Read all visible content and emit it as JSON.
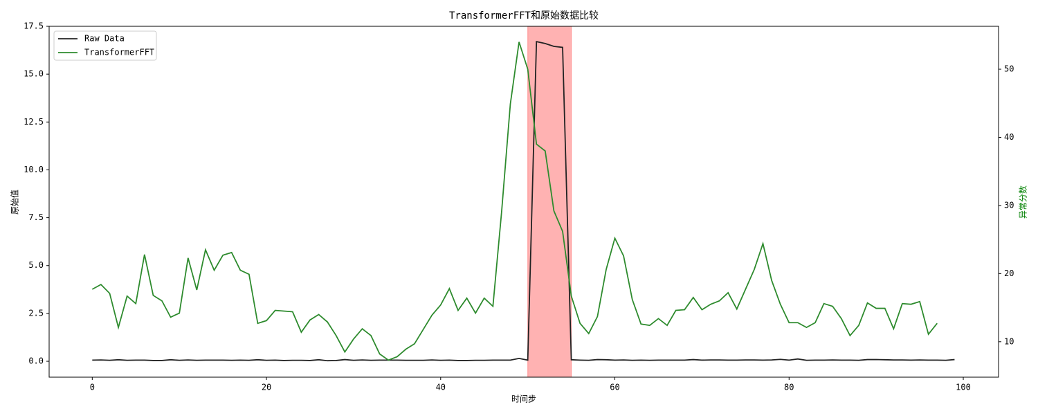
{
  "chart_data": {
    "type": "line",
    "title": "TransformerFFT和原始数据比较",
    "xlabel": "时间步",
    "ylabel": "原始值",
    "y2label": "异常分数",
    "y2label_color": "#008000",
    "xlim": [
      -4.95,
      104.05
    ],
    "xticks": [
      0,
      20,
      40,
      60,
      80,
      100
    ],
    "ylim": [
      -0.83,
      17.5
    ],
    "yticks": [
      {
        "value": 0,
        "label": "0.0"
      },
      2.5,
      {
        "value": 5,
        "label": "5.0"
      },
      7.5,
      {
        "value": 10,
        "label": "10.0"
      },
      12.5,
      {
        "value": 15,
        "label": "15.0"
      },
      17.5
    ],
    "y2lim": [
      4.8,
      56.3
    ],
    "y2ticks": [
      10,
      20,
      30,
      40,
      50
    ],
    "legend": "upper left",
    "grid": false,
    "highlight": {
      "xmin": 50,
      "xmax": 55,
      "color": "#ff0000",
      "alpha": 0.3
    },
    "series": [
      {
        "name": "Raw Data",
        "color": "#222222",
        "x": [
          0,
          1,
          2,
          3,
          4,
          5,
          6,
          7,
          8,
          9,
          10,
          11,
          12,
          13,
          14,
          15,
          16,
          17,
          18,
          19,
          20,
          21,
          22,
          23,
          24,
          25,
          26,
          27,
          28,
          29,
          30,
          31,
          32,
          33,
          34,
          35,
          36,
          37,
          38,
          39,
          40,
          41,
          42,
          43,
          44,
          45,
          46,
          47,
          48,
          49,
          50,
          51,
          52,
          53,
          54,
          55,
          56,
          57,
          58,
          59,
          60,
          61,
          62,
          63,
          64,
          65,
          66,
          67,
          68,
          69,
          70,
          71,
          72,
          73,
          74,
          75,
          76,
          77,
          78,
          79,
          80,
          81,
          82,
          83,
          84,
          85,
          86,
          87,
          88,
          89,
          90,
          91,
          92,
          93,
          94,
          95,
          96,
          97,
          98,
          99
        ],
        "values": [
          0.06,
          0.07,
          0.05,
          0.08,
          0.05,
          0.06,
          0.06,
          0.04,
          0.04,
          0.08,
          0.05,
          0.07,
          0.05,
          0.06,
          0.06,
          0.06,
          0.05,
          0.06,
          0.05,
          0.08,
          0.05,
          0.06,
          0.04,
          0.05,
          0.05,
          0.04,
          0.08,
          0.03,
          0.04,
          0.09,
          0.05,
          0.07,
          0.05,
          0.06,
          0.06,
          0.06,
          0.05,
          0.05,
          0.05,
          0.07,
          0.05,
          0.06,
          0.04,
          0.04,
          0.05,
          0.05,
          0.06,
          0.06,
          0.06,
          0.15,
          0.06,
          16.7,
          16.6,
          16.45,
          16.4,
          0.08,
          0.06,
          0.05,
          0.09,
          0.08,
          0.06,
          0.07,
          0.05,
          0.06,
          0.05,
          0.06,
          0.06,
          0.06,
          0.06,
          0.09,
          0.06,
          0.07,
          0.07,
          0.06,
          0.06,
          0.07,
          0.07,
          0.06,
          0.07,
          0.1,
          0.06,
          0.12,
          0.05,
          0.06,
          0.06,
          0.07,
          0.06,
          0.06,
          0.05,
          0.09,
          0.09,
          0.08,
          0.07,
          0.07,
          0.06,
          0.07,
          0.06,
          0.06,
          0.05,
          0.09
        ]
      },
      {
        "name": "TransformerFFT",
        "color": "#2e8b2e",
        "axis": "y2",
        "x": [
          0,
          1,
          2,
          3,
          4,
          5,
          6,
          7,
          8,
          9,
          10,
          11,
          12,
          13,
          14,
          15,
          16,
          17,
          18,
          19,
          20,
          21,
          22,
          23,
          24,
          25,
          26,
          27,
          28,
          29,
          30,
          31,
          32,
          33,
          34,
          35,
          36,
          37,
          38,
          39,
          40,
          41,
          42,
          43,
          44,
          45,
          46,
          47,
          48,
          49,
          50,
          51,
          52,
          53,
          54,
          55,
          56,
          57,
          58,
          59,
          60,
          61,
          62,
          63,
          64,
          65,
          66,
          67,
          68,
          69,
          70,
          71,
          72,
          73,
          74,
          75,
          76,
          77,
          78,
          79,
          80,
          81,
          82,
          83,
          84,
          85,
          86,
          87,
          88,
          89,
          90,
          91,
          92,
          93,
          94,
          95,
          96,
          97
        ],
        "values": [
          17.7,
          18.4,
          17.1,
          12.1,
          16.7,
          15.6,
          22.8,
          16.8,
          16.0,
          13.6,
          14.2,
          22.3,
          17.6,
          23.5,
          20.5,
          22.7,
          23.1,
          20.5,
          19.9,
          12.7,
          13.1,
          14.6,
          14.5,
          14.4,
          11.4,
          13.2,
          14.0,
          12.9,
          10.9,
          8.5,
          10.4,
          11.9,
          10.9,
          8.2,
          7.3,
          7.8,
          8.9,
          9.7,
          11.8,
          13.9,
          15.4,
          17.8,
          14.6,
          16.4,
          14.2,
          16.4,
          15.2,
          29.1,
          44.9,
          54.0,
          50.0,
          39.0,
          38.0,
          29.2,
          26.2,
          16.7,
          12.7,
          11.2,
          13.7,
          20.6,
          25.2,
          22.6,
          16.2,
          12.6,
          12.4,
          13.4,
          12.4,
          14.6,
          14.7,
          16.5,
          14.7,
          15.5,
          16.0,
          17.2,
          14.8,
          17.7,
          20.6,
          24.4,
          19.0,
          15.5,
          12.8,
          12.8,
          12.1,
          12.8,
          15.6,
          15.2,
          13.4,
          10.9,
          12.4,
          15.7,
          14.9,
          14.9,
          11.9,
          15.6,
          15.5,
          15.9,
          11.1,
          12.7
        ]
      }
    ]
  }
}
